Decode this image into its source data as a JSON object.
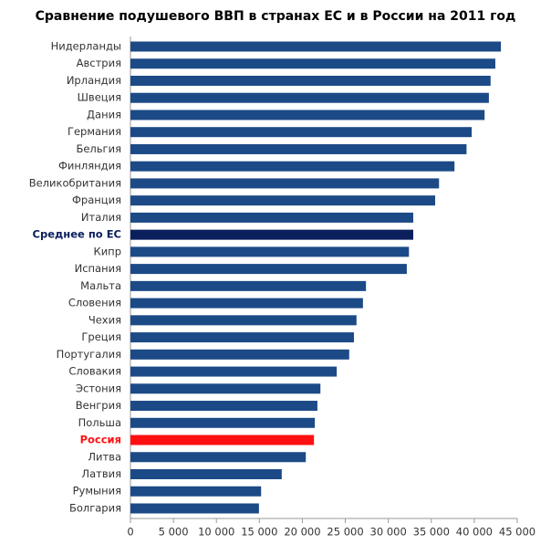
{
  "chart_data": {
    "type": "barh",
    "title": "Сравнение подушевого ВВП в странах ЕС и в России на 2011 год",
    "categories": [
      "Нидерланды",
      "Австрия",
      "Ирландия",
      "Швеция",
      "Дания",
      "Германия",
      "Бельгия",
      "Финляндия",
      "Великобритания",
      "Франция",
      "Италия",
      "Среднее по ЕС",
      "Кипр",
      "Испания",
      "Мальта",
      "Словения",
      "Чехия",
      "Греция",
      "Португалия",
      "Словакия",
      "Эстония",
      "Венгрия",
      "Польша",
      "Россия",
      "Литва",
      "Латвия",
      "Румыния",
      "Болгария"
    ],
    "values": [
      43100,
      42450,
      41900,
      41700,
      41200,
      39700,
      39100,
      37700,
      35900,
      35450,
      32900,
      32900,
      32400,
      32150,
      27400,
      27050,
      26300,
      26000,
      25450,
      24000,
      22100,
      21750,
      21450,
      21350,
      20400,
      17600,
      15200,
      14950
    ],
    "color": "#1c4a87",
    "colors": [
      "#1c4a87",
      "#1c4a87",
      "#1c4a87",
      "#1c4a87",
      "#1c4a87",
      "#1c4a87",
      "#1c4a87",
      "#1c4a87",
      "#1c4a87",
      "#1c4a87",
      "#1c4a87",
      "#0b1f5c",
      "#1c4a87",
      "#1c4a87",
      "#1c4a87",
      "#1c4a87",
      "#1c4a87",
      "#1c4a87",
      "#1c4a87",
      "#1c4a87",
      "#1c4a87",
      "#1c4a87",
      "#1c4a87",
      "#ff1010",
      "#1c4a87",
      "#1c4a87",
      "#1c4a87",
      "#1c4a87"
    ],
    "xlim": [
      0,
      45000
    ],
    "xticks": [
      0,
      {
        "value": 5000,
        "label": "5 000"
      },
      {
        "value": 10000,
        "label": "10 000"
      },
      {
        "value": 15000,
        "label": "15 000"
      },
      {
        "value": 20000,
        "label": "20 000"
      },
      {
        "value": 25000,
        "label": "25 000"
      },
      {
        "value": 30000,
        "label": "30 000"
      },
      {
        "value": 35000,
        "label": "35 000"
      },
      {
        "value": 40000,
        "label": "40 000"
      },
      {
        "value": 45000,
        "label": "45 000"
      }
    ]
  }
}
